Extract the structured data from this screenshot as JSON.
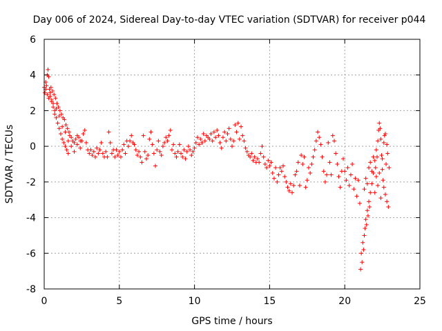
{
  "chart_data": {
    "type": "scatter",
    "title": "Day 006 of 2024, Sidereal Day-to-day VTEC variation (SDTVAR) for receiver p044",
    "xlabel": "GPS time / hours",
    "ylabel": "SDTVAR / TECUs",
    "xlim": [
      0,
      25
    ],
    "ylim": [
      -8,
      6
    ],
    "xticks": [
      0,
      5,
      10,
      15,
      20,
      25
    ],
    "yticks": [
      -8,
      -6,
      -4,
      -2,
      0,
      2,
      4,
      6
    ],
    "xtick_labels": [
      "0",
      "5",
      "10",
      "15",
      "20",
      "25"
    ],
    "ytick_labels": [
      "-8",
      "-6",
      "-4",
      "-2",
      "0",
      "2",
      "4",
      "6"
    ],
    "grid": true,
    "marker": "+",
    "color": "#ff0000",
    "series": [
      {
        "name": "SDTVAR",
        "points": [
          [
            0.0,
            3.3
          ],
          [
            0.05,
            3.0
          ],
          [
            0.1,
            3.6
          ],
          [
            0.15,
            3.4
          ],
          [
            0.2,
            4.0
          ],
          [
            0.25,
            4.3
          ],
          [
            0.3,
            3.9
          ],
          [
            0.35,
            3.2
          ],
          [
            0.4,
            2.8
          ],
          [
            0.45,
            3.3
          ],
          [
            0.5,
            2.5
          ],
          [
            0.55,
            3.1
          ],
          [
            0.6,
            2.2
          ],
          [
            0.65,
            2.9
          ],
          [
            0.7,
            2.0
          ],
          [
            0.75,
            2.7
          ],
          [
            0.8,
            1.6
          ],
          [
            0.85,
            2.4
          ],
          [
            0.9,
            1.3
          ],
          [
            0.95,
            2.2
          ],
          [
            1.0,
            1.0
          ],
          [
            1.05,
            2.0
          ],
          [
            1.1,
            0.7
          ],
          [
            1.15,
            1.8
          ],
          [
            1.2,
            0.4
          ],
          [
            1.25,
            1.6
          ],
          [
            1.3,
            0.2
          ],
          [
            1.35,
            1.5
          ],
          [
            1.4,
            0.0
          ],
          [
            1.45,
            1.2
          ],
          [
            1.5,
            -0.2
          ],
          [
            1.55,
            1.0
          ],
          [
            1.6,
            -0.4
          ],
          [
            1.65,
            0.8
          ],
          [
            1.7,
            0.6
          ],
          [
            1.8,
            0.5
          ],
          [
            1.9,
            0.3
          ],
          [
            2.0,
            0.2
          ],
          [
            2.1,
            0.4
          ],
          [
            2.2,
            0.1
          ],
          [
            2.3,
            0.5
          ],
          [
            2.4,
            -0.1
          ],
          [
            2.5,
            0.3
          ],
          [
            2.6,
            0.7
          ],
          [
            2.7,
            0.9
          ],
          [
            2.8,
            0.2
          ],
          [
            2.9,
            -0.2
          ],
          [
            3.0,
            -0.4
          ],
          [
            3.1,
            -0.2
          ],
          [
            3.2,
            -0.5
          ],
          [
            3.3,
            -0.3
          ],
          [
            3.4,
            -0.6
          ],
          [
            3.5,
            -0.1
          ],
          [
            3.6,
            -0.4
          ],
          [
            3.7,
            -0.2
          ],
          [
            3.8,
            0.2
          ],
          [
            3.9,
            -0.4
          ],
          [
            4.0,
            -0.6
          ],
          [
            4.1,
            -0.3
          ],
          [
            4.2,
            -0.6
          ],
          [
            4.3,
            0.8
          ],
          [
            4.4,
            0.2
          ],
          [
            4.5,
            -0.4
          ],
          [
            4.6,
            -0.2
          ],
          [
            4.7,
            -0.6
          ],
          [
            4.8,
            -0.2
          ],
          [
            4.9,
            -0.5
          ],
          [
            5.0,
            -0.3
          ],
          [
            5.1,
            -0.6
          ],
          [
            5.2,
            -0.2
          ],
          [
            5.3,
            0.1
          ],
          [
            5.4,
            -0.4
          ],
          [
            5.5,
            0.3
          ],
          [
            5.6,
            0.0
          ],
          [
            5.7,
            0.3
          ],
          [
            5.8,
            0.6
          ],
          [
            5.9,
            0.2
          ],
          [
            6.0,
            0.1
          ],
          [
            6.1,
            -0.2
          ],
          [
            6.2,
            -0.5
          ],
          [
            6.3,
            -0.3
          ],
          [
            6.4,
            -0.6
          ],
          [
            6.5,
            -0.9
          ],
          [
            6.6,
            0.6
          ],
          [
            6.7,
            -0.3
          ],
          [
            6.8,
            -0.7
          ],
          [
            6.9,
            -0.5
          ],
          [
            7.0,
            0.4
          ],
          [
            7.1,
            0.8
          ],
          [
            7.2,
            0.1
          ],
          [
            7.3,
            -0.4
          ],
          [
            7.4,
            -1.1
          ],
          [
            7.5,
            -0.2
          ],
          [
            7.6,
            0.3
          ],
          [
            7.7,
            -0.3
          ],
          [
            7.8,
            -0.5
          ],
          [
            7.9,
            0.0
          ],
          [
            8.0,
            0.2
          ],
          [
            8.1,
            0.5
          ],
          [
            8.2,
            0.3
          ],
          [
            8.3,
            0.6
          ],
          [
            8.4,
            0.9
          ],
          [
            8.5,
            -0.2
          ],
          [
            8.6,
            0.1
          ],
          [
            8.7,
            -0.4
          ],
          [
            8.8,
            -0.6
          ],
          [
            8.9,
            -0.3
          ],
          [
            9.0,
            0.1
          ],
          [
            9.1,
            -0.4
          ],
          [
            9.2,
            -0.6
          ],
          [
            9.3,
            -0.2
          ],
          [
            9.4,
            -0.7
          ],
          [
            9.5,
            -0.3
          ],
          [
            9.6,
            0.0
          ],
          [
            9.7,
            -0.2
          ],
          [
            9.8,
            -0.5
          ],
          [
            9.9,
            -0.3
          ],
          [
            10.0,
            -0.1
          ],
          [
            10.1,
            0.2
          ],
          [
            10.2,
            0.5
          ],
          [
            10.3,
            0.1
          ],
          [
            10.4,
            0.4
          ],
          [
            10.5,
            0.2
          ],
          [
            10.6,
            0.7
          ],
          [
            10.7,
            0.3
          ],
          [
            10.8,
            0.6
          ],
          [
            10.9,
            0.5
          ],
          [
            11.0,
            0.4
          ],
          [
            11.1,
            0.7
          ],
          [
            11.2,
            0.3
          ],
          [
            11.3,
            0.8
          ],
          [
            11.4,
            0.5
          ],
          [
            11.5,
            0.9
          ],
          [
            11.6,
            0.6
          ],
          [
            11.7,
            0.2
          ],
          [
            11.8,
            -0.1
          ],
          [
            11.9,
            0.5
          ],
          [
            12.0,
            0.8
          ],
          [
            12.1,
            0.3
          ],
          [
            12.2,
            0.7
          ],
          [
            12.3,
            1.0
          ],
          [
            12.4,
            0.4
          ],
          [
            12.5,
            0.0
          ],
          [
            12.6,
            0.3
          ],
          [
            12.7,
            1.2
          ],
          [
            12.8,
            0.8
          ],
          [
            12.9,
            1.3
          ],
          [
            13.0,
            0.4
          ],
          [
            13.1,
            1.1
          ],
          [
            13.2,
            0.6
          ],
          [
            13.3,
            0.3
          ],
          [
            13.4,
            -0.1
          ],
          [
            13.5,
            -0.3
          ],
          [
            13.6,
            -0.5
          ],
          [
            13.7,
            -0.6
          ],
          [
            13.8,
            -0.4
          ],
          [
            13.9,
            -0.8
          ],
          [
            14.0,
            -0.6
          ],
          [
            14.1,
            -0.9
          ],
          [
            14.2,
            -0.7
          ],
          [
            14.3,
            -0.9
          ],
          [
            14.4,
            -0.4
          ],
          [
            14.5,
            0.0
          ],
          [
            14.6,
            -0.6
          ],
          [
            14.7,
            -1.0
          ],
          [
            14.8,
            -1.2
          ],
          [
            14.9,
            -0.8
          ],
          [
            15.0,
            -1.1
          ],
          [
            15.1,
            -0.9
          ],
          [
            15.2,
            -1.5
          ],
          [
            15.3,
            -1.8
          ],
          [
            15.4,
            -1.2
          ],
          [
            15.5,
            -2.0
          ],
          [
            15.6,
            -1.6
          ],
          [
            15.7,
            -1.2
          ],
          [
            15.8,
            -1.4
          ],
          [
            15.9,
            -1.1
          ],
          [
            16.0,
            -1.7
          ],
          [
            16.1,
            -2.0
          ],
          [
            16.2,
            -2.3
          ],
          [
            16.3,
            -2.5
          ],
          [
            16.4,
            -2.1
          ],
          [
            16.5,
            -2.6
          ],
          [
            16.6,
            -2.2
          ],
          [
            16.7,
            -1.6
          ],
          [
            16.8,
            -1.4
          ],
          [
            16.9,
            -0.9
          ],
          [
            17.0,
            -2.2
          ],
          [
            17.1,
            -0.5
          ],
          [
            17.2,
            -1.0
          ],
          [
            17.3,
            -0.6
          ],
          [
            17.4,
            -2.3
          ],
          [
            17.5,
            -1.9
          ],
          [
            17.6,
            -1.2
          ],
          [
            17.7,
            -1.5
          ],
          [
            17.8,
            -1.0
          ],
          [
            17.9,
            -0.6
          ],
          [
            18.0,
            -0.2
          ],
          [
            18.1,
            0.3
          ],
          [
            18.2,
            0.8
          ],
          [
            18.3,
            0.5
          ],
          [
            18.4,
            0.1
          ],
          [
            18.5,
            -0.6
          ],
          [
            18.6,
            -1.4
          ],
          [
            18.7,
            -2.0
          ],
          [
            18.8,
            -1.6
          ],
          [
            18.9,
            0.2
          ],
          [
            19.0,
            -0.9
          ],
          [
            19.1,
            -1.6
          ],
          [
            19.2,
            0.6
          ],
          [
            19.3,
            0.3
          ],
          [
            19.4,
            -0.4
          ],
          [
            19.5,
            -1.0
          ],
          [
            19.6,
            -1.7
          ],
          [
            19.7,
            -2.3
          ],
          [
            19.8,
            -1.4
          ],
          [
            19.9,
            -0.7
          ],
          [
            20.0,
            -1.4
          ],
          [
            20.1,
            -1.9
          ],
          [
            20.2,
            -1.2
          ],
          [
            20.3,
            -2.2
          ],
          [
            20.4,
            -1.6
          ],
          [
            20.5,
            -1.0
          ],
          [
            20.6,
            -2.4
          ],
          [
            20.7,
            -1.8
          ],
          [
            20.8,
            -2.8
          ],
          [
            20.9,
            -1.9
          ],
          [
            21.0,
            -3.2
          ],
          [
            21.05,
            -6.9
          ],
          [
            21.1,
            -6.0
          ],
          [
            21.15,
            -6.5
          ],
          [
            21.2,
            -5.4
          ],
          [
            21.25,
            -5.8
          ],
          [
            21.3,
            -5.0
          ],
          [
            21.35,
            -4.6
          ],
          [
            21.4,
            -4.1
          ],
          [
            21.45,
            -4.4
          ],
          [
            21.5,
            -3.6
          ],
          [
            21.55,
            -3.9
          ],
          [
            21.6,
            -3.1
          ],
          [
            21.65,
            -3.4
          ],
          [
            21.7,
            -2.6
          ],
          [
            21.8,
            -2.1
          ],
          [
            21.9,
            -1.5
          ],
          [
            22.0,
            -0.8
          ],
          [
            22.05,
            -1.2
          ],
          [
            22.1,
            -0.2
          ],
          [
            22.15,
            -0.6
          ],
          [
            22.2,
            0.3
          ],
          [
            22.25,
            0.9
          ],
          [
            22.3,
            1.3
          ],
          [
            22.35,
            1.0
          ],
          [
            22.4,
            0.4
          ],
          [
            22.45,
            -0.5
          ],
          [
            22.5,
            -1.3
          ],
          [
            22.55,
            -1.9
          ],
          [
            22.6,
            -2.3
          ],
          [
            22.65,
            0.6
          ],
          [
            22.7,
            -2.7
          ],
          [
            22.75,
            -1.0
          ],
          [
            22.8,
            -3.1
          ],
          [
            22.85,
            -0.4
          ],
          [
            22.9,
            -3.4
          ],
          [
            22.95,
            -1.2
          ],
          [
            21.3,
            -2.4
          ],
          [
            21.4,
            -1.8
          ],
          [
            21.5,
            -2.1
          ],
          [
            21.6,
            -1.2
          ],
          [
            21.7,
            -0.9
          ],
          [
            21.8,
            -1.4
          ],
          [
            21.9,
            -0.6
          ],
          [
            22.0,
            -2.6
          ],
          [
            22.1,
            -1.7
          ],
          [
            22.2,
            -2.2
          ],
          [
            22.3,
            -1.5
          ],
          [
            22.4,
            -2.9
          ],
          [
            22.5,
            -0.7
          ],
          [
            22.6,
            0.2
          ],
          [
            22.7,
            0.7
          ],
          [
            22.8,
            0.1
          ],
          [
            0.1,
            3.2
          ],
          [
            0.2,
            2.9
          ],
          [
            0.3,
            2.7
          ],
          [
            0.4,
            3.0
          ],
          [
            0.5,
            2.6
          ],
          [
            0.6,
            2.4
          ],
          [
            0.7,
            1.8
          ],
          [
            0.8,
            2.1
          ],
          [
            1.0,
            1.7
          ],
          [
            1.2,
            1.1
          ],
          [
            1.4,
            0.8
          ],
          [
            1.6,
            0.3
          ],
          [
            1.8,
            0.0
          ],
          [
            2.0,
            -0.3
          ],
          [
            2.2,
            0.6
          ],
          [
            2.4,
            0.3
          ]
        ]
      }
    ]
  }
}
